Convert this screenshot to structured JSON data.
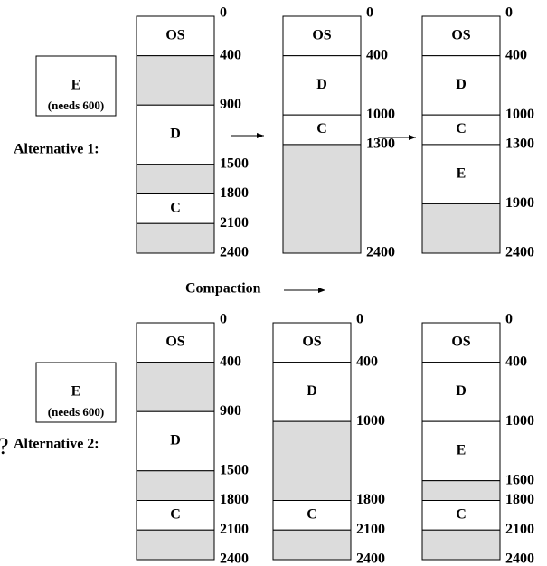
{
  "rows": [
    {
      "label": "Alternative 1:",
      "job": {
        "name": "E",
        "note": "(needs 600)"
      },
      "columns": [
        {
          "addresses": [
            0,
            400,
            900,
            1500,
            1800,
            2100,
            2400
          ],
          "segments": [
            {
              "label": "OS",
              "from": 0,
              "to": 400
            },
            {
              "from": 400,
              "to": 900
            },
            {
              "label": "D",
              "from": 900,
              "to": 1500
            },
            {
              "from": 1500,
              "to": 1800
            },
            {
              "label": "C",
              "from": 1800,
              "to": 2100
            },
            {
              "from": 2100,
              "to": 2400
            }
          ]
        },
        {
          "addresses": [
            0,
            400,
            1000,
            1300,
            2400
          ],
          "segments": [
            {
              "label": "OS",
              "from": 0,
              "to": 400
            },
            {
              "label": "D",
              "from": 400,
              "to": 1000
            },
            {
              "label": "C",
              "from": 1000,
              "to": 1300
            },
            {
              "from": 1300,
              "to": 2400
            }
          ]
        },
        {
          "addresses": [
            0,
            400,
            1000,
            1300,
            1900,
            2400
          ],
          "segments": [
            {
              "label": "OS",
              "from": 0,
              "to": 400
            },
            {
              "label": "D",
              "from": 400,
              "to": 1000
            },
            {
              "label": "C",
              "from": 1000,
              "to": 1300
            },
            {
              "label": "E",
              "from": 1300,
              "to": 1900
            },
            {
              "from": 1900,
              "to": 2400
            }
          ]
        }
      ]
    },
    {
      "label": "Alternative 2:",
      "question": "?",
      "job": {
        "name": "E",
        "note": "(needs 600)"
      },
      "columns": [
        {
          "addresses": [
            0,
            400,
            900,
            1500,
            1800,
            2100,
            2400
          ],
          "segments": [
            {
              "label": "OS",
              "from": 0,
              "to": 400
            },
            {
              "from": 400,
              "to": 900
            },
            {
              "label": "D",
              "from": 900,
              "to": 1500
            },
            {
              "from": 1500,
              "to": 1800
            },
            {
              "label": "C",
              "from": 1800,
              "to": 2100
            },
            {
              "from": 2100,
              "to": 2400
            }
          ]
        },
        {
          "addresses": [
            0,
            400,
            1000,
            1800,
            2100,
            2400
          ],
          "segments": [
            {
              "label": "OS",
              "from": 0,
              "to": 400
            },
            {
              "label": "D",
              "from": 400,
              "to": 1000
            },
            {
              "from": 1000,
              "to": 1800
            },
            {
              "label": "C",
              "from": 1800,
              "to": 2100
            },
            {
              "from": 2100,
              "to": 2400
            }
          ]
        },
        {
          "addresses": [
            0,
            400,
            1000,
            1600,
            1800,
            2100,
            2400
          ],
          "segments": [
            {
              "label": "OS",
              "from": 0,
              "to": 400
            },
            {
              "label": "D",
              "from": 400,
              "to": 1000
            },
            {
              "label": "E",
              "from": 1000,
              "to": 1600
            },
            {
              "from": 1600,
              "to": 1800
            },
            {
              "label": "C",
              "from": 1800,
              "to": 2100
            },
            {
              "from": 2100,
              "to": 2400
            }
          ]
        }
      ]
    }
  ],
  "compaction": "Compaction"
}
